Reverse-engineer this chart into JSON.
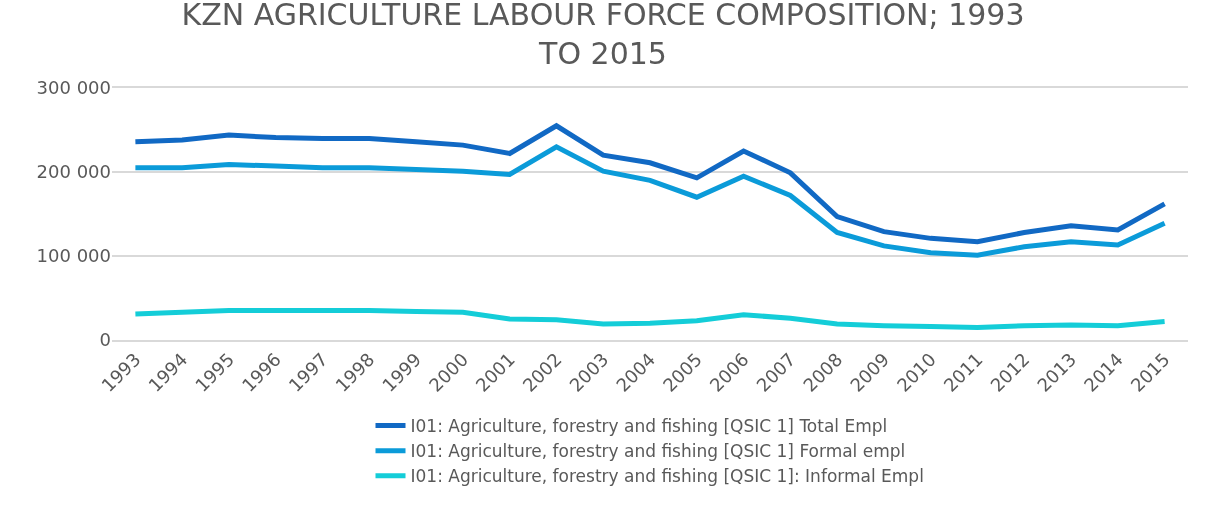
{
  "chart_data": {
    "type": "line",
    "title": "KZN AGRICULTURE LABOUR FORCE COMPOSITION; 1993 TO 2015",
    "categories": [
      "1993",
      "1994",
      "1995",
      "1996",
      "1997",
      "1998",
      "1999",
      "2000",
      "2001",
      "2002",
      "2003",
      "2004",
      "2005",
      "2006",
      "2007",
      "2008",
      "2009",
      "2010",
      "2011",
      "2012",
      "2013",
      "2014",
      "2015"
    ],
    "series": [
      {
        "name": "I01: Agriculture, forestry and fishing [QSIC 1] Total Empl",
        "color": "#1169c4",
        "values": [
          236000,
          238000,
          244000,
          241000,
          240000,
          240000,
          236000,
          232000,
          222000,
          255000,
          220000,
          211000,
          193000,
          225000,
          199000,
          147000,
          129000,
          121000,
          117000,
          128000,
          136000,
          131000,
          162000
        ]
      },
      {
        "name": "I01: Agriculture, forestry and fishing [QSIC 1] Formal empl",
        "color": "#0b9bd9",
        "values": [
          205000,
          205000,
          209000,
          207000,
          205000,
          205000,
          203000,
          201000,
          197000,
          230000,
          201000,
          190000,
          170000,
          195000,
          172000,
          128000,
          112000,
          104000,
          101000,
          111000,
          117000,
          113000,
          139000
        ]
      },
      {
        "name": "I01: Agriculture, forestry and fishing [QSIC 1]: Informal Empl",
        "color": "#14cdd8",
        "values": [
          31000,
          33000,
          35000,
          35000,
          35000,
          35000,
          34000,
          33000,
          25000,
          24000,
          19000,
          20000,
          23000,
          30000,
          26000,
          19000,
          17000,
          16000,
          15000,
          17000,
          18000,
          17000,
          22000
        ]
      }
    ],
    "ylim": [
      0,
      300000
    ],
    "yticks": [
      {
        "value": 0,
        "label": "0"
      },
      {
        "value": 100000,
        "label": "100 000"
      },
      {
        "value": 200000,
        "label": "200 000"
      },
      {
        "value": 300000,
        "label": "300 000"
      }
    ],
    "grid": "y",
    "legend": "bottom",
    "marker": "none",
    "line_style": "solid"
  }
}
